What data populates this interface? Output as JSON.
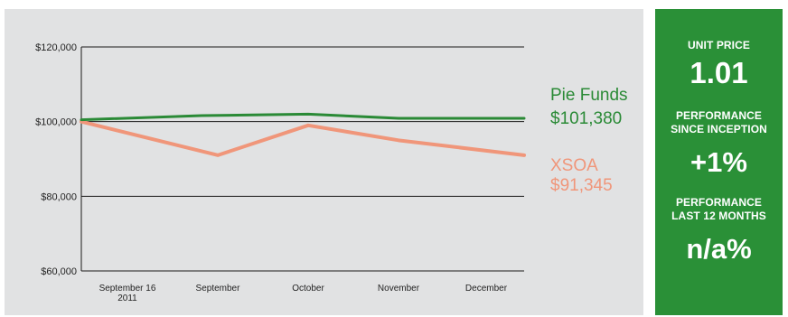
{
  "chart_data": {
    "type": "line",
    "x": [
      "September 16\n2011",
      "September",
      "October",
      "November",
      "December"
    ],
    "y_ticks": [
      "$120,000",
      "$100,000",
      "$80,000",
      "$60,000"
    ],
    "y_tick_values": [
      120000,
      100000,
      80000,
      60000
    ],
    "ylim": [
      60000,
      120000
    ],
    "grid": true,
    "series": [
      {
        "name": "Pie Funds",
        "value_label": "$101,380",
        "color": "#2a8a36",
        "x": [
          0,
          0.82,
          2.0,
          3.0,
          4.2
        ],
        "values": [
          100500,
          101600,
          102000,
          100900,
          100900
        ]
      },
      {
        "name": "XSOA",
        "value_label": "$91,345",
        "color": "#f0967a",
        "x": [
          0,
          1.0,
          2.0,
          3.0,
          4.2
        ],
        "values": [
          100000,
          91000,
          99000,
          95000,
          91000
        ]
      }
    ]
  },
  "stats": {
    "unit_price_label": "UNIT PRICE",
    "unit_price_value": "1.01",
    "perf_inception_label": "PERFORMANCE SINCE INCEPTION",
    "perf_inception_value": "+1%",
    "perf_12m_label": "PERFORMANCE LAST 12 MONTHS",
    "perf_12m_value": "n/a%"
  },
  "colors": {
    "panel_bg": "#e1e2e3",
    "stats_bg": "#2a9037"
  }
}
